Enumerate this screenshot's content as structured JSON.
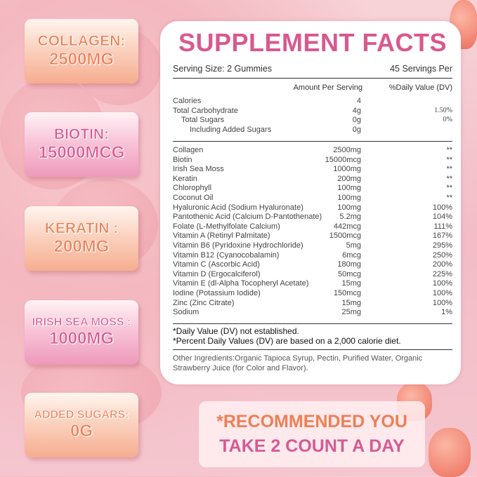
{
  "badges": [
    {
      "line1": "COLLAGEN:",
      "line2": "2500MG",
      "color": "#ee7f55"
    },
    {
      "line1": "BIOTIN:",
      "line2": "15000MCG",
      "color": "#d65a93"
    },
    {
      "line1": "KERATIN :",
      "line2": "200MG",
      "color": "#ee7f55"
    },
    {
      "line1": "IRISH SEA MOSS :",
      "line2": "1000MG",
      "color": "#d65a93"
    },
    {
      "line1": "ADDED SUGARS:",
      "line2": "0G",
      "color": "#ee7f55"
    }
  ],
  "facts": {
    "title": "SUPPLEMENT FACTS",
    "serving_size": "Serving Size: 2 Gummies",
    "servings_per": "45 Servings Per",
    "col_amount": "Amount Per Serving",
    "col_dv": "%Daily Value (DV)",
    "macros": [
      {
        "name": "Calories",
        "amount": "4",
        "dv": ""
      },
      {
        "name": "Total Carbohydrate",
        "amount": "4g",
        "dv": "1.50%"
      },
      {
        "name": "Total Sugars",
        "amount": "0g",
        "dv": "0%"
      },
      {
        "name": "Including Added Sugars",
        "amount": "0g",
        "dv": ""
      }
    ],
    "nutrients": [
      {
        "name": "Collagen",
        "amount": "2500mg",
        "dv": "**"
      },
      {
        "name": "Biotin",
        "amount": "15000mcg",
        "dv": "**"
      },
      {
        "name": "Irish Sea Moss",
        "amount": "1000mg",
        "dv": "**"
      },
      {
        "name": "Keratin",
        "amount": "200mg",
        "dv": "**"
      },
      {
        "name": "Chlorophyll",
        "amount": "100mg",
        "dv": "**"
      },
      {
        "name": "Coconut Oil",
        "amount": "100mg",
        "dv": "**"
      },
      {
        "name": "Hyaluronic Acid (Sodium Hyaluronate)",
        "amount": "100mg",
        "dv": "100%"
      },
      {
        "name": "Pantothenic Acid (Calcium D-Pantothenate)",
        "amount": "5.2mg",
        "dv": "104%"
      },
      {
        "name": "Folate (L-Methylfolate Calcium)",
        "amount": "442mcg",
        "dv": "111%"
      },
      {
        "name": "Vitamin A (Retinyl Palmitate)",
        "amount": "1500mcg",
        "dv": "167%"
      },
      {
        "name": "Vitamin B6 (Pyridoxine Hydrochloride)",
        "amount": "5mg",
        "dv": "295%"
      },
      {
        "name": "Vitamin B12 (Cyanocobalamin)",
        "amount": "6mcg",
        "dv": "250%"
      },
      {
        "name": "Vitamin C (Ascorbic Acid)",
        "amount": "180mg",
        "dv": "200%"
      },
      {
        "name": "Vitamin D (Ergocalciferol)",
        "amount": "50mcg",
        "dv": "225%"
      },
      {
        "name": "Vitamin E (dl-Alpha Tocopheryl Acetate)",
        "amount": "15mg",
        "dv": "100%"
      },
      {
        "name": "Iodine (Potassium Iodide)",
        "amount": "150mcg",
        "dv": "100%"
      },
      {
        "name": "Zinc (Zinc Citrate)",
        "amount": "15mg",
        "dv": "100%"
      },
      {
        "name": "Sodium",
        "amount": "25mg",
        "dv": "1%"
      }
    ],
    "note1": "*Daily Value (DV) not established.",
    "note2": "*Percent Daily Values (DV) are based on a 2,000 calorie diet.",
    "other1": "Other Ingredients:Organic Tapioca Syrup, Pectin, Purified Water, Organic",
    "other2": "Strawberry Juice (for Color and Flavor)."
  },
  "recommendation": {
    "line1": "*RECOMMENDED YOU",
    "line2": "TAKE 2 COUNT A DAY",
    "color1": "#ee7f55",
    "color2": "#d65a93"
  },
  "colors": {
    "title": "#d9598f",
    "background": "#f4c0c8"
  }
}
